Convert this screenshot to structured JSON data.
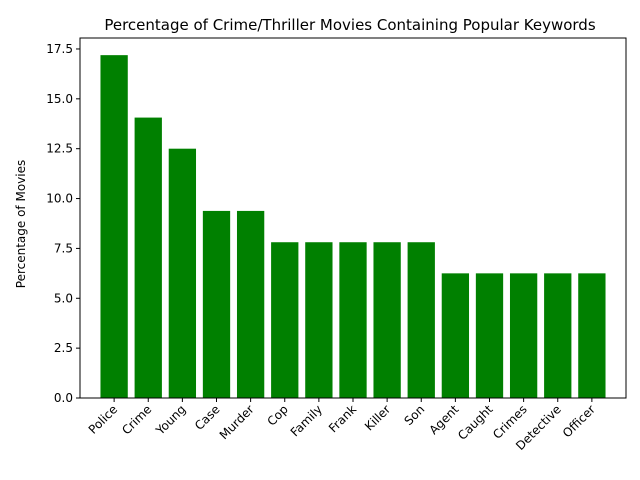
{
  "chart_data": {
    "type": "bar",
    "title": "Percentage of Crime/Thriller Movies Containing Popular Keywords",
    "xlabel": "",
    "ylabel": "Percentage of Movies",
    "categories": [
      "Police",
      "Crime",
      "Young",
      "Case",
      "Murder",
      "Cop",
      "Family",
      "Frank",
      "Killer",
      "Son",
      "Agent",
      "Caught",
      "Crimes",
      "Detective",
      "Officer"
    ],
    "values": [
      17.19,
      14.06,
      12.5,
      9.38,
      9.38,
      7.81,
      7.81,
      7.81,
      7.81,
      7.81,
      6.25,
      6.25,
      6.25,
      6.25,
      6.25
    ],
    "ylim": [
      0,
      18.05
    ],
    "yticks": [
      "0.0",
      "2.5",
      "5.0",
      "7.5",
      "10.0",
      "12.5",
      "15.0",
      "17.5"
    ],
    "bar_color": "#008000",
    "grid": false,
    "legend": "none"
  }
}
